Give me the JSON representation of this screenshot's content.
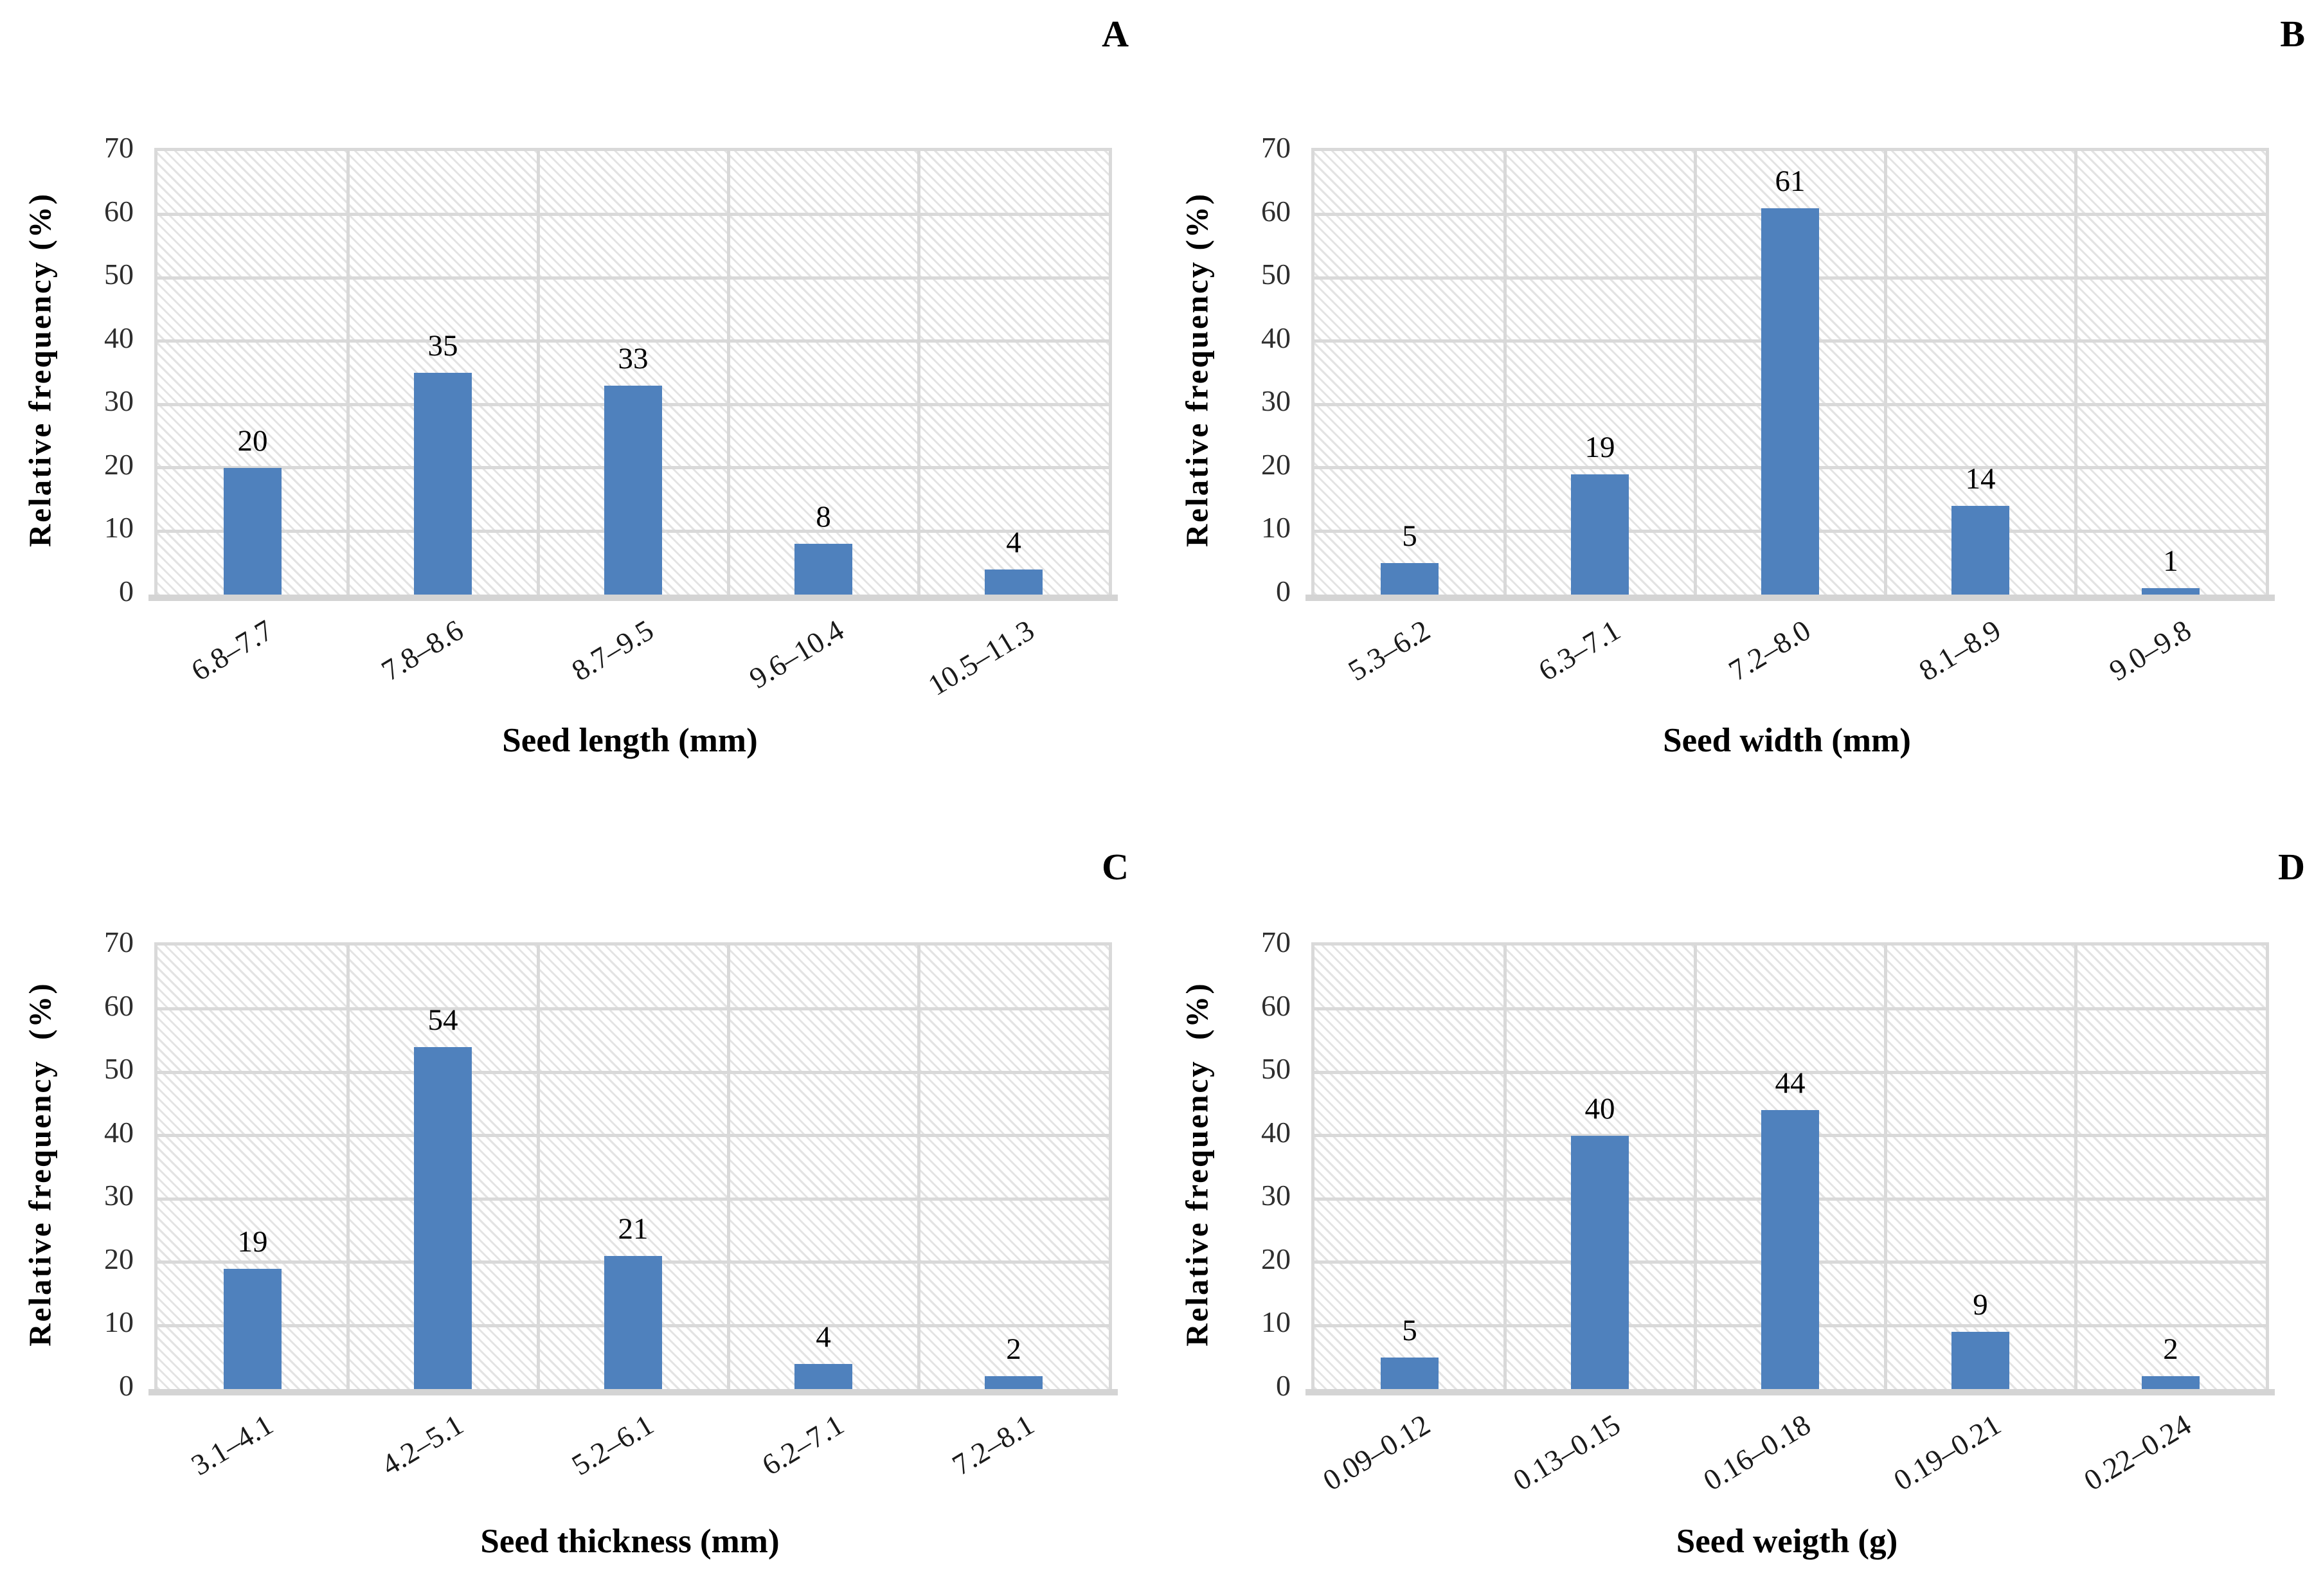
{
  "figure": {
    "y_ticks": [
      0,
      10,
      20,
      30,
      40,
      50,
      60,
      70
    ],
    "colors": {
      "bar": "#4F81BD",
      "gridline": "#D9D9D9",
      "axis_line": "#D4D4D4",
      "hatch_stripe": "#E6E6E6",
      "label_text": "#000000",
      "tick_text": "#2E2E2E"
    }
  },
  "chart_data": [
    {
      "type": "bar",
      "panel_label": "A",
      "title": "",
      "categories": [
        "6.8–7.7",
        "7.8–8.6",
        "8.7–9.5",
        "9.6–10.4",
        "10.5–11.3"
      ],
      "values": [
        20,
        35,
        33,
        8,
        4
      ],
      "xlabel": "Seed length (mm)",
      "ylabel": "Relative frequency (%)",
      "ylim": [
        0,
        70
      ],
      "ystep": 10,
      "grid": true,
      "legend": false,
      "value_labels": true
    },
    {
      "type": "bar",
      "panel_label": "B",
      "title": "",
      "categories": [
        "5.3–6.2",
        "6.3–7.1",
        "7.2–8.0",
        "8.1–8.9",
        "9.0–9.8"
      ],
      "values": [
        5,
        19,
        61,
        14,
        1
      ],
      "xlabel": "Seed width (mm)",
      "ylabel": "Relative frequency (%)",
      "ylim": [
        0,
        70
      ],
      "ystep": 10,
      "grid": true,
      "legend": false,
      "value_labels": true
    },
    {
      "type": "bar",
      "panel_label": "C",
      "title": "",
      "categories": [
        "3.1–4.1",
        "4.2–5.1",
        "5.2–6.1",
        "6.2–7.1",
        "7.2–8.1"
      ],
      "values": [
        19,
        54,
        21,
        4,
        2
      ],
      "xlabel": "Seed thickness (mm)",
      "ylabel": "Relative frequency  (%)",
      "ylim": [
        0,
        70
      ],
      "ystep": 10,
      "grid": true,
      "legend": false,
      "value_labels": true
    },
    {
      "type": "bar",
      "panel_label": "D",
      "title": "",
      "categories": [
        "0.09–0.12",
        "0.13–0.15",
        "0.16–0.18",
        "0.19–0.21",
        "0.22–0.24"
      ],
      "values": [
        5,
        40,
        44,
        9,
        2
      ],
      "xlabel": "Seed weigth (g)",
      "ylabel": "Relative frequency  (%)",
      "ylim": [
        0,
        70
      ],
      "ystep": 10,
      "grid": true,
      "legend": false,
      "value_labels": true
    }
  ]
}
